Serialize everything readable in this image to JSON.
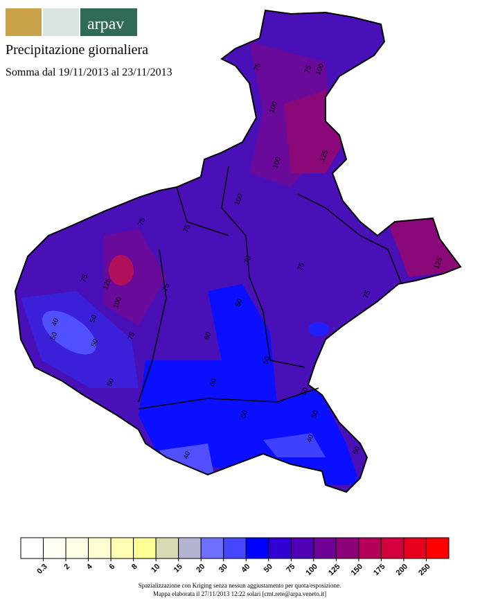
{
  "header": {
    "logo_text": "arpav",
    "title": "Precipitazione giornaliera",
    "subtitle": "Somma dal 19/11/2013 al 23/11/2013"
  },
  "map": {
    "contour_labels": [
      75,
      100,
      75,
      100,
      125,
      100,
      100,
      75,
      75,
      125,
      75,
      75,
      75,
      125,
      100,
      50,
      40,
      50,
      50,
      75,
      75,
      50,
      60,
      50,
      50,
      60,
      50,
      50,
      50,
      40,
      40,
      50,
      75
    ]
  },
  "legend": {
    "ticks": [
      0.3,
      2,
      4,
      6,
      8,
      10,
      15,
      20,
      30,
      40,
      50,
      75,
      100,
      125,
      150,
      175,
      200,
      250
    ],
    "colors": [
      "#ffffff",
      "#fffff4",
      "#ffffe6",
      "#ffffd2",
      "#ffffb4",
      "#ffff96",
      "#d9d9b4",
      "#b4b4d2",
      "#6e6eff",
      "#4646ff",
      "#0000ff",
      "#3200d2",
      "#5000b4",
      "#6e0096",
      "#8c0078",
      "#b4005a",
      "#d2003c",
      "#e6001e",
      "#ff0000"
    ]
  },
  "footer": {
    "lines": [
      "Spazializzazione con Kriging senza nessun aggiustamento per quota/esposizione.",
      "Mappa elaborata il 27/11/2013 12:22 solari [cmt.rete@arpa.veneto.it]"
    ]
  }
}
